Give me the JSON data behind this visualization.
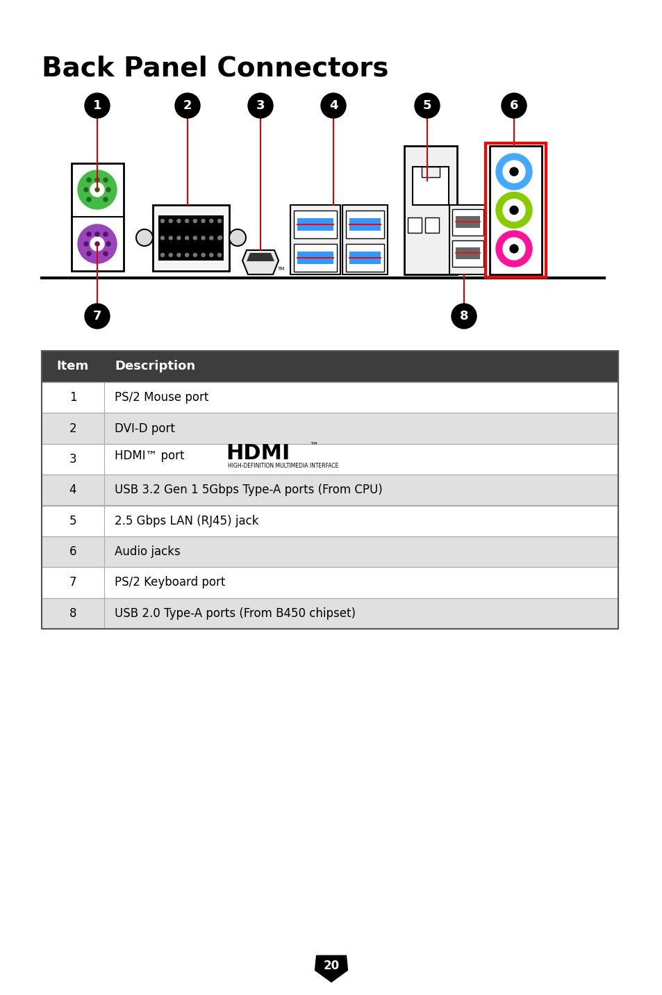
{
  "title": "Back Panel Connectors",
  "page_number": "20",
  "bg": "#ffffff",
  "table_header_bg": "#3d3d3d",
  "table_row_colors": [
    "#ffffff",
    "#e0e0e0"
  ],
  "table_items": [
    {
      "num": "1",
      "desc": "PS/2 Mouse port",
      "hdmi": false
    },
    {
      "num": "2",
      "desc": "DVI-D port",
      "hdmi": false
    },
    {
      "num": "3",
      "desc": "HDMI™ port",
      "hdmi": true
    },
    {
      "num": "4",
      "desc": "USB 3.2 Gen 1 5Gbps Type-A ports (From CPU)",
      "hdmi": false
    },
    {
      "num": "5",
      "desc": "2.5 Gbps LAN (RJ45) jack",
      "hdmi": false
    },
    {
      "num": "6",
      "desc": "Audio jacks",
      "hdmi": false
    },
    {
      "num": "7",
      "desc": "PS/2 Keyboard port",
      "hdmi": false
    },
    {
      "num": "8",
      "desc": "USB 2.0 Type-A ports (From B450 chipset)",
      "hdmi": false
    }
  ],
  "ps2_green": "#44bb44",
  "ps2_purple": "#9944bb",
  "audio_blue": "#44aaff",
  "audio_green": "#88cc00",
  "audio_pink": "#ff1199",
  "red_line": "#dd0000",
  "usb_blue": "#3399ff"
}
